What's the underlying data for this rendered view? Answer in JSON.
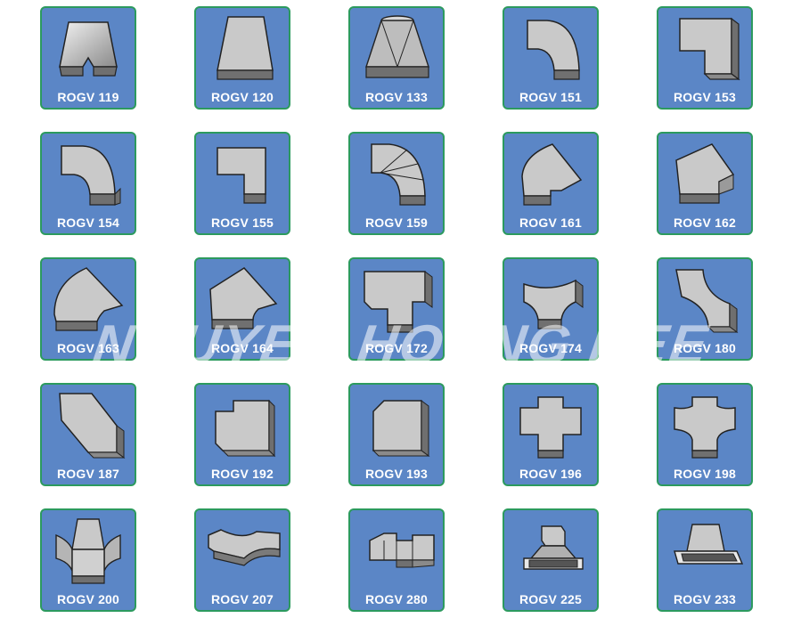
{
  "colors": {
    "tile_background": "#5b86c6",
    "tile_border": "#2c9a5e",
    "label_text": "#ffffff"
  },
  "watermark": "NGUYEN HOANG REE",
  "items": [
    {
      "label": "ROGV 119",
      "icon": "duct-transition-icon"
    },
    {
      "label": "ROGV 120",
      "icon": "duct-reducer-icon"
    },
    {
      "label": "ROGV 133",
      "icon": "duct-hood-icon"
    },
    {
      "label": "ROGV 151",
      "icon": "duct-elbow-icon"
    },
    {
      "label": "ROGV 153",
      "icon": "duct-square-elbow-icon"
    },
    {
      "label": "ROGV 154",
      "icon": "duct-elbow-icon"
    },
    {
      "label": "ROGV 155",
      "icon": "duct-square-elbow-icon"
    },
    {
      "label": "ROGV 159",
      "icon": "duct-vaned-elbow-icon"
    },
    {
      "label": "ROGV 161",
      "icon": "duct-angled-elbow-icon"
    },
    {
      "label": "ROGV 162",
      "icon": "duct-angled-elbow-icon"
    },
    {
      "label": "ROGV 163",
      "icon": "duct-angled-elbow-icon"
    },
    {
      "label": "ROGV 164",
      "icon": "duct-angled-elbow-icon"
    },
    {
      "label": "ROGV 172",
      "icon": "duct-tee-icon"
    },
    {
      "label": "ROGV 174",
      "icon": "duct-wye-icon"
    },
    {
      "label": "ROGV 180",
      "icon": "duct-offset-icon"
    },
    {
      "label": "ROGV 187",
      "icon": "duct-offset-icon"
    },
    {
      "label": "ROGV 192",
      "icon": "duct-square-elbow-icon"
    },
    {
      "label": "ROGV 193",
      "icon": "duct-square-elbow-icon"
    },
    {
      "label": "ROGV 196",
      "icon": "duct-cross-icon"
    },
    {
      "label": "ROGV 198",
      "icon": "duct-cross-icon"
    },
    {
      "label": "ROGV 200",
      "icon": "duct-four-way-icon"
    },
    {
      "label": "ROGV 207",
      "icon": "duct-bend-icon"
    },
    {
      "label": "ROGV 280",
      "icon": "duct-tee-icon"
    },
    {
      "label": "ROGV 225",
      "icon": "duct-diffuser-icon"
    },
    {
      "label": "ROGV 233",
      "icon": "duct-diffuser-icon"
    }
  ]
}
